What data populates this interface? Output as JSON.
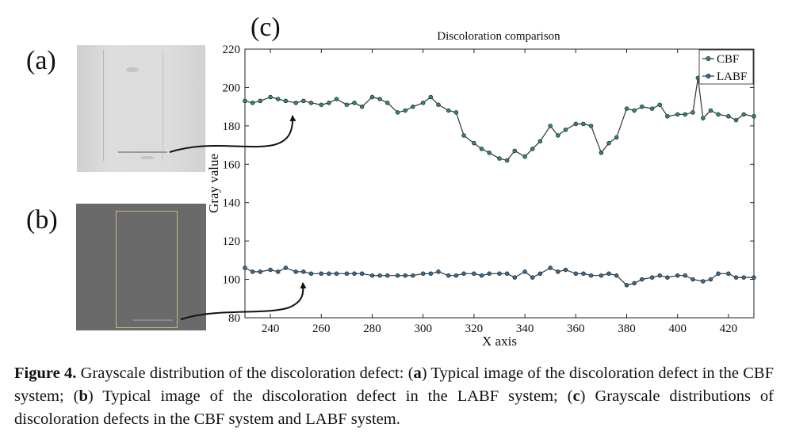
{
  "panels": {
    "a": "(a)",
    "b": "(b)",
    "c": "(c)"
  },
  "caption": {
    "figure": "Figure 4.",
    "p1": " Grayscale distribution of the discoloration defect: (",
    "k1": "a",
    "p2": ") Typical image of the discoloration defect in the CBF system; (",
    "k2": "b",
    "p3": ") Typical image of the discoloration defect in the LABF system; (",
    "k3": "c",
    "p4": ") Grayscale distributions of discoloration defects in the CBF system and LABF system."
  },
  "chart_data": {
    "type": "line",
    "title": "Discoloration comparison",
    "xlabel": "X axis",
    "ylabel": "Gray value",
    "xlim": [
      230,
      430
    ],
    "ylim": [
      80,
      220
    ],
    "xticks": [
      240,
      260,
      280,
      300,
      320,
      340,
      360,
      380,
      400,
      420
    ],
    "yticks": [
      80,
      100,
      120,
      140,
      160,
      180,
      200,
      220
    ],
    "grid": false,
    "legend": "top-right",
    "series": [
      {
        "name": "CBF",
        "color": "#2e8b74",
        "x": [
          230,
          233,
          236,
          240,
          243,
          246,
          250,
          253,
          256,
          260,
          263,
          266,
          270,
          273,
          276,
          280,
          283,
          286,
          290,
          293,
          296,
          300,
          303,
          306,
          310,
          313,
          316,
          320,
          323,
          326,
          330,
          333,
          336,
          340,
          343,
          346,
          350,
          353,
          356,
          360,
          363,
          366,
          370,
          373,
          376,
          380,
          383,
          386,
          390,
          393,
          396,
          400,
          403,
          406,
          408,
          410,
          413,
          416,
          420,
          423,
          426,
          430
        ],
        "values": [
          193,
          192,
          193,
          195,
          194,
          193,
          192,
          193,
          192,
          191,
          192,
          194,
          191,
          192,
          190,
          195,
          194,
          192,
          187,
          188,
          190,
          192,
          195,
          191,
          188,
          187,
          175,
          171,
          168,
          166,
          163,
          162,
          167,
          164,
          168,
          172,
          180,
          175,
          178,
          181,
          181,
          180,
          166,
          171,
          174,
          189,
          188,
          190,
          189,
          191,
          185,
          186,
          186,
          187,
          205,
          184,
          188,
          186,
          185,
          183,
          186,
          185
        ]
      },
      {
        "name": "LABF",
        "color": "#2f6f9e",
        "x": [
          230,
          233,
          236,
          240,
          243,
          246,
          250,
          253,
          256,
          260,
          263,
          266,
          270,
          273,
          276,
          280,
          283,
          286,
          290,
          293,
          296,
          300,
          303,
          306,
          310,
          313,
          316,
          320,
          323,
          326,
          330,
          333,
          336,
          340,
          343,
          346,
          350,
          353,
          356,
          360,
          363,
          366,
          370,
          373,
          376,
          380,
          383,
          386,
          390,
          393,
          396,
          400,
          403,
          406,
          410,
          413,
          416,
          420,
          423,
          426,
          430
        ],
        "values": [
          106,
          104,
          104,
          105,
          104,
          106,
          104,
          104,
          103,
          103,
          103,
          103,
          103,
          103,
          103,
          102,
          102,
          102,
          102,
          102,
          102,
          103,
          103,
          104,
          102,
          102,
          103,
          103,
          102,
          103,
          103,
          103,
          101,
          104,
          101,
          103,
          106,
          104,
          105,
          103,
          103,
          102,
          102,
          103,
          102,
          97,
          98,
          100,
          101,
          102,
          101,
          102,
          102,
          100,
          99,
          100,
          103,
          103,
          101,
          101,
          101
        ]
      }
    ]
  }
}
